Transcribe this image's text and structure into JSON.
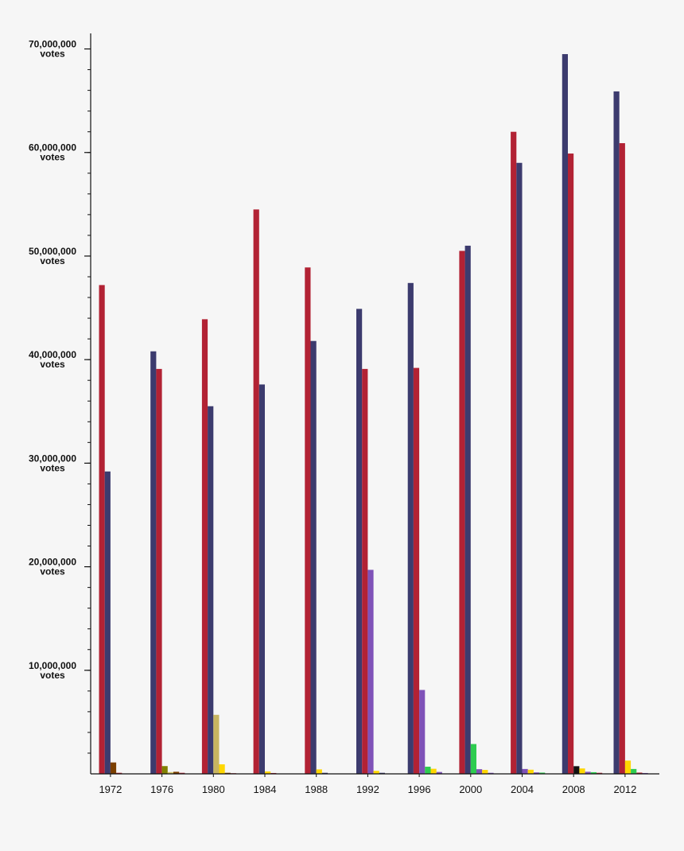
{
  "chart_data": {
    "type": "bar",
    "title": "",
    "xlabel": "",
    "ylabel": "",
    "unit_label": "votes",
    "ylim": [
      0,
      71500000
    ],
    "grid": false,
    "legend": "none",
    "y_ticks": [
      {
        "value": 10000000,
        "label": "10,000,000"
      },
      {
        "value": 20000000,
        "label": "20,000,000"
      },
      {
        "value": 30000000,
        "label": "30,000,000"
      },
      {
        "value": 40000000,
        "label": "40,000,000"
      },
      {
        "value": 50000000,
        "label": "50,000,000"
      },
      {
        "value": 60000000,
        "label": "60,000,000"
      },
      {
        "value": 70000000,
        "label": "70,000,000"
      }
    ],
    "minor_tick_step": 2000000,
    "categories": [
      "1972",
      "1976",
      "1980",
      "1984",
      "1988",
      "1992",
      "1996",
      "2000",
      "2004",
      "2008",
      "2012"
    ],
    "groups": [
      {
        "year": "1972",
        "bars": [
          {
            "value": 47200000,
            "color": "#b22234"
          },
          {
            "value": 29200000,
            "color": "#3c3b6e"
          },
          {
            "value": 1100000,
            "color": "#7b3f00"
          },
          {
            "value": 100000,
            "color": "#b22234"
          }
        ]
      },
      {
        "year": "1976",
        "bars": [
          {
            "value": 40800000,
            "color": "#3c3b6e"
          },
          {
            "value": 39100000,
            "color": "#b22234"
          },
          {
            "value": 750000,
            "color": "#808000"
          },
          {
            "value": 170000,
            "color": "#d4c36a"
          },
          {
            "value": 200000,
            "color": "#7b3f00"
          },
          {
            "value": 100000,
            "color": "#b22234"
          }
        ]
      },
      {
        "year": "1980",
        "bars": [
          {
            "value": 43900000,
            "color": "#b22234"
          },
          {
            "value": 35500000,
            "color": "#3c3b6e"
          },
          {
            "value": 5700000,
            "color": "#c8b560"
          },
          {
            "value": 920000,
            "color": "#ffd700"
          },
          {
            "value": 100000,
            "color": "#7b3f00"
          },
          {
            "value": 50000,
            "color": "#b22234"
          }
        ]
      },
      {
        "year": "1984",
        "bars": [
          {
            "value": 54500000,
            "color": "#b22234"
          },
          {
            "value": 37600000,
            "color": "#3c3b6e"
          },
          {
            "value": 230000,
            "color": "#ffd700"
          },
          {
            "value": 80000,
            "color": "#b22234"
          }
        ]
      },
      {
        "year": "1988",
        "bars": [
          {
            "value": 48900000,
            "color": "#b22234"
          },
          {
            "value": 41800000,
            "color": "#3c3b6e"
          },
          {
            "value": 430000,
            "color": "#ffd700"
          },
          {
            "value": 100000,
            "color": "#3c3b6e"
          }
        ]
      },
      {
        "year": "1992",
        "bars": [
          {
            "value": 44900000,
            "color": "#3c3b6e"
          },
          {
            "value": 39100000,
            "color": "#b22234"
          },
          {
            "value": 19700000,
            "color": "#7f52b8"
          },
          {
            "value": 290000,
            "color": "#ffd700"
          },
          {
            "value": 100000,
            "color": "#3c3b6e"
          }
        ]
      },
      {
        "year": "1996",
        "bars": [
          {
            "value": 47400000,
            "color": "#3c3b6e"
          },
          {
            "value": 39200000,
            "color": "#b22234"
          },
          {
            "value": 8100000,
            "color": "#7f52b8"
          },
          {
            "value": 690000,
            "color": "#2ecc50"
          },
          {
            "value": 490000,
            "color": "#ffd700"
          },
          {
            "value": 180000,
            "color": "#7f52b8"
          }
        ]
      },
      {
        "year": "2000",
        "bars": [
          {
            "value": 50500000,
            "color": "#b22234"
          },
          {
            "value": 51000000,
            "color": "#3c3b6e"
          },
          {
            "value": 2880000,
            "color": "#2ecc50"
          },
          {
            "value": 450000,
            "color": "#7f52b8"
          },
          {
            "value": 380000,
            "color": "#ffd700"
          },
          {
            "value": 100000,
            "color": "#7f52b8"
          }
        ]
      },
      {
        "year": "2004",
        "bars": [
          {
            "value": 62000000,
            "color": "#b22234"
          },
          {
            "value": 59000000,
            "color": "#3c3b6e"
          },
          {
            "value": 470000,
            "color": "#7f52b8"
          },
          {
            "value": 400000,
            "color": "#ffd700"
          },
          {
            "value": 140000,
            "color": "#7f52b8"
          },
          {
            "value": 120000,
            "color": "#2ecc50"
          }
        ]
      },
      {
        "year": "2008",
        "bars": [
          {
            "value": 69500000,
            "color": "#3c3b6e"
          },
          {
            "value": 59900000,
            "color": "#b22234"
          },
          {
            "value": 740000,
            "color": "#111111"
          },
          {
            "value": 520000,
            "color": "#ffd700"
          },
          {
            "value": 200000,
            "color": "#7f52b8"
          },
          {
            "value": 160000,
            "color": "#2ecc50"
          },
          {
            "value": 100000,
            "color": "#b22234"
          }
        ]
      },
      {
        "year": "2012",
        "bars": [
          {
            "value": 65900000,
            "color": "#3c3b6e"
          },
          {
            "value": 60900000,
            "color": "#b22234"
          },
          {
            "value": 1280000,
            "color": "#ffd700"
          },
          {
            "value": 470000,
            "color": "#2ecc50"
          },
          {
            "value": 120000,
            "color": "#b22234"
          },
          {
            "value": 80000,
            "color": "#7f52b8"
          }
        ]
      }
    ]
  }
}
